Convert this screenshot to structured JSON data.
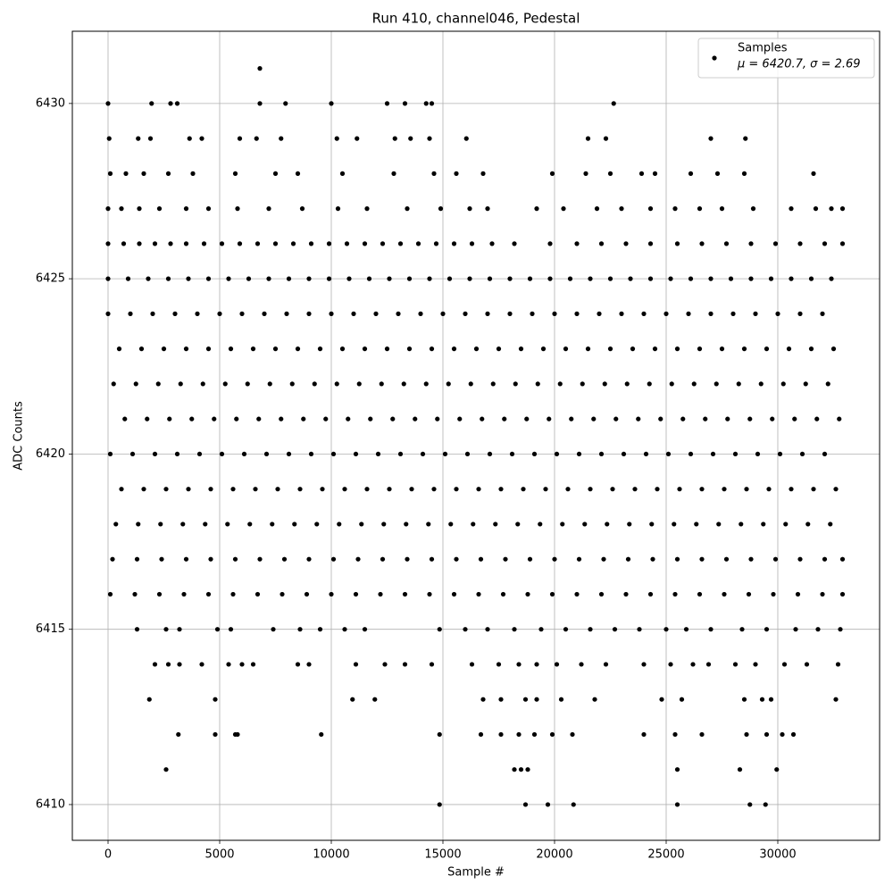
{
  "chart_data": {
    "type": "scatter",
    "title": "Run 410, channel046, Pedestal",
    "x_label": "Sample #",
    "y_label": "ADC Counts",
    "xlim": [
      -1600,
      34560
    ],
    "ylim": [
      6408.98,
      6432.06
    ],
    "xticks": [
      0,
      5000,
      10000,
      15000,
      20000,
      25000,
      30000
    ],
    "yticks": [
      6410,
      6415,
      6420,
      6425,
      6430
    ],
    "grid": true,
    "legend_loc": "upper right",
    "legend_note": "μ = 6420.7, σ = 2.69",
    "series": [
      {
        "name": "Samples",
        "color": "#000000",
        "x": [
          6800,
          0,
          1950,
          2800,
          3100,
          6800,
          7950,
          10000,
          12500,
          13300,
          14250,
          14500,
          22650,
          50,
          1350,
          1900,
          3650,
          4200,
          5900,
          6650,
          7750,
          10250,
          11150,
          12850,
          13550,
          14400,
          16050,
          21500,
          22300,
          27000,
          28550,
          100,
          800,
          1600,
          2700,
          3800,
          5700,
          7500,
          8500,
          10500,
          12800,
          14600,
          15600,
          16800,
          19900,
          21400,
          22500,
          23900,
          24500,
          26100,
          27300,
          28500,
          31600,
          0,
          600,
          1400,
          2300,
          3500,
          4500,
          5800,
          7200,
          8700,
          10300,
          11600,
          13400,
          14900,
          16200,
          17000,
          19200,
          20400,
          21900,
          23000,
          24300,
          25400,
          26500,
          27500,
          28900,
          30600,
          31700,
          32400,
          32900,
          0,
          700,
          1400,
          2100,
          2800,
          3500,
          4300,
          5100,
          5900,
          6700,
          7500,
          8300,
          9100,
          9900,
          10700,
          11500,
          12300,
          13100,
          13900,
          14700,
          15500,
          16300,
          17200,
          18200,
          19800,
          21000,
          22100,
          23200,
          24300,
          25500,
          26600,
          27700,
          28800,
          29900,
          31000,
          32100,
          32900,
          0,
          900,
          1800,
          2700,
          3600,
          4500,
          5400,
          6300,
          7200,
          8100,
          9000,
          9900,
          10800,
          11700,
          12600,
          13500,
          14400,
          15300,
          16200,
          17100,
          18000,
          18900,
          19800,
          20700,
          21600,
          22500,
          23400,
          24300,
          25200,
          26100,
          27000,
          27900,
          28800,
          29700,
          30600,
          31500,
          32400,
          0,
          1000,
          2000,
          3000,
          4000,
          5000,
          6000,
          7000,
          8000,
          9000,
          10000,
          11000,
          12000,
          13000,
          14000,
          15000,
          16000,
          17000,
          18000,
          19000,
          20000,
          21000,
          22000,
          23000,
          24000,
          25000,
          26000,
          27000,
          28000,
          29000,
          30000,
          31000,
          32000,
          500,
          1500,
          2500,
          3500,
          4500,
          5500,
          6500,
          7500,
          8500,
          9500,
          10500,
          11500,
          12500,
          13500,
          14500,
          15500,
          16500,
          17500,
          18500,
          19500,
          20500,
          21500,
          22500,
          23500,
          24500,
          25500,
          26500,
          27500,
          28500,
          29500,
          30500,
          31500,
          32500,
          250,
          1250,
          2250,
          3250,
          4250,
          5250,
          6250,
          7250,
          8250,
          9250,
          10250,
          11250,
          12250,
          13250,
          14250,
          15250,
          16250,
          17250,
          18250,
          19250,
          20250,
          21250,
          22250,
          23250,
          24250,
          25250,
          26250,
          27250,
          28250,
          29250,
          30250,
          31250,
          32250,
          750,
          1750,
          2750,
          3750,
          4750,
          5750,
          6750,
          7750,
          8750,
          9750,
          10750,
          11750,
          12750,
          13750,
          14750,
          15750,
          16750,
          17750,
          18750,
          19750,
          20750,
          21750,
          22750,
          23750,
          24750,
          25750,
          26750,
          27750,
          28750,
          29750,
          30750,
          31750,
          32750,
          100,
          1100,
          2100,
          3100,
          4100,
          5100,
          6100,
          7100,
          8100,
          9100,
          10100,
          11100,
          12100,
          13100,
          14100,
          15100,
          16100,
          17100,
          18100,
          19100,
          20100,
          21100,
          22100,
          23100,
          24100,
          25100,
          26100,
          27100,
          28100,
          29100,
          30100,
          31100,
          32100,
          600,
          1600,
          2600,
          3600,
          4600,
          5600,
          6600,
          7600,
          8600,
          9600,
          10600,
          11600,
          12600,
          13600,
          14600,
          15600,
          16600,
          17600,
          18600,
          19600,
          20600,
          21600,
          22600,
          23600,
          24600,
          25600,
          26600,
          27600,
          28600,
          29600,
          30600,
          31600,
          32600,
          350,
          1350,
          2350,
          3350,
          4350,
          5350,
          6350,
          7350,
          8350,
          9350,
          10350,
          11350,
          12350,
          13350,
          14350,
          15350,
          16350,
          17350,
          18350,
          19350,
          20350,
          21350,
          22350,
          23350,
          24350,
          25350,
          26350,
          27350,
          28350,
          29350,
          30350,
          31350,
          32350,
          200,
          1300,
          2400,
          3500,
          4600,
          5700,
          6800,
          7900,
          9000,
          10100,
          11200,
          12300,
          13400,
          14500,
          15600,
          16700,
          17800,
          18900,
          20000,
          21100,
          22200,
          23300,
          24400,
          25500,
          26600,
          27700,
          28800,
          29900,
          31000,
          32100,
          32900,
          100,
          1200,
          2300,
          3400,
          4500,
          5600,
          6700,
          7800,
          8900,
          10000,
          11100,
          12200,
          13300,
          14400,
          15500,
          16600,
          17700,
          18800,
          19900,
          21000,
          22100,
          23200,
          24300,
          25400,
          26500,
          27600,
          28700,
          29800,
          30900,
          32000,
          32900,
          1300,
          2600,
          3200,
          4900,
          5500,
          7400,
          8600,
          9500,
          10600,
          11500,
          14850,
          16000,
          17000,
          18200,
          19400,
          20500,
          21600,
          22700,
          23800,
          25000,
          25900,
          27000,
          28400,
          29500,
          30800,
          31800,
          32800,
          2100,
          2700,
          3200,
          4200,
          5400,
          6000,
          6500,
          8500,
          9000,
          11100,
          12400,
          13300,
          14500,
          16300,
          17500,
          18400,
          19200,
          20100,
          21200,
          22300,
          24000,
          25200,
          26200,
          26900,
          28100,
          29000,
          30300,
          31300,
          32700,
          1850,
          4800,
          10950,
          11950,
          16800,
          17600,
          18700,
          19200,
          20300,
          21800,
          24800,
          25700,
          28500,
          29300,
          29700,
          32600,
          3150,
          4800,
          5700,
          5800,
          9550,
          14850,
          16700,
          17600,
          18400,
          19100,
          19900,
          20800,
          24000,
          25400,
          26600,
          28600,
          29500,
          30200,
          30700,
          2600,
          18200,
          18500,
          18800,
          25500,
          28300,
          29950,
          14850,
          18700,
          19700,
          20850,
          25500,
          28750,
          29450
        ],
        "values": [
          6431,
          6430,
          6430,
          6430,
          6430,
          6430,
          6430,
          6430,
          6430,
          6430,
          6430,
          6430,
          6430,
          6429,
          6429,
          6429,
          6429,
          6429,
          6429,
          6429,
          6429,
          6429,
          6429,
          6429,
          6429,
          6429,
          6429,
          6429,
          6429,
          6429,
          6429,
          6428,
          6428,
          6428,
          6428,
          6428,
          6428,
          6428,
          6428,
          6428,
          6428,
          6428,
          6428,
          6428,
          6428,
          6428,
          6428,
          6428,
          6428,
          6428,
          6428,
          6428,
          6428,
          6427,
          6427,
          6427,
          6427,
          6427,
          6427,
          6427,
          6427,
          6427,
          6427,
          6427,
          6427,
          6427,
          6427,
          6427,
          6427,
          6427,
          6427,
          6427,
          6427,
          6427,
          6427,
          6427,
          6427,
          6427,
          6427,
          6427,
          6427,
          6426,
          6426,
          6426,
          6426,
          6426,
          6426,
          6426,
          6426,
          6426,
          6426,
          6426,
          6426,
          6426,
          6426,
          6426,
          6426,
          6426,
          6426,
          6426,
          6426,
          6426,
          6426,
          6426,
          6426,
          6426,
          6426,
          6426,
          6426,
          6426,
          6426,
          6426,
          6426,
          6426,
          6426,
          6426,
          6426,
          6426,
          6425,
          6425,
          6425,
          6425,
          6425,
          6425,
          6425,
          6425,
          6425,
          6425,
          6425,
          6425,
          6425,
          6425,
          6425,
          6425,
          6425,
          6425,
          6425,
          6425,
          6425,
          6425,
          6425,
          6425,
          6425,
          6425,
          6425,
          6425,
          6425,
          6425,
          6425,
          6425,
          6425,
          6425,
          6425,
          6425,
          6425,
          6424,
          6424,
          6424,
          6424,
          6424,
          6424,
          6424,
          6424,
          6424,
          6424,
          6424,
          6424,
          6424,
          6424,
          6424,
          6424,
          6424,
          6424,
          6424,
          6424,
          6424,
          6424,
          6424,
          6424,
          6424,
          6424,
          6424,
          6424,
          6424,
          6424,
          6424,
          6424,
          6424,
          6423,
          6423,
          6423,
          6423,
          6423,
          6423,
          6423,
          6423,
          6423,
          6423,
          6423,
          6423,
          6423,
          6423,
          6423,
          6423,
          6423,
          6423,
          6423,
          6423,
          6423,
          6423,
          6423,
          6423,
          6423,
          6423,
          6423,
          6423,
          6423,
          6423,
          6423,
          6423,
          6423,
          6422,
          6422,
          6422,
          6422,
          6422,
          6422,
          6422,
          6422,
          6422,
          6422,
          6422,
          6422,
          6422,
          6422,
          6422,
          6422,
          6422,
          6422,
          6422,
          6422,
          6422,
          6422,
          6422,
          6422,
          6422,
          6422,
          6422,
          6422,
          6422,
          6422,
          6422,
          6422,
          6422,
          6421,
          6421,
          6421,
          6421,
          6421,
          6421,
          6421,
          6421,
          6421,
          6421,
          6421,
          6421,
          6421,
          6421,
          6421,
          6421,
          6421,
          6421,
          6421,
          6421,
          6421,
          6421,
          6421,
          6421,
          6421,
          6421,
          6421,
          6421,
          6421,
          6421,
          6421,
          6421,
          6421,
          6420,
          6420,
          6420,
          6420,
          6420,
          6420,
          6420,
          6420,
          6420,
          6420,
          6420,
          6420,
          6420,
          6420,
          6420,
          6420,
          6420,
          6420,
          6420,
          6420,
          6420,
          6420,
          6420,
          6420,
          6420,
          6420,
          6420,
          6420,
          6420,
          6420,
          6420,
          6420,
          6420,
          6419,
          6419,
          6419,
          6419,
          6419,
          6419,
          6419,
          6419,
          6419,
          6419,
          6419,
          6419,
          6419,
          6419,
          6419,
          6419,
          6419,
          6419,
          6419,
          6419,
          6419,
          6419,
          6419,
          6419,
          6419,
          6419,
          6419,
          6419,
          6419,
          6419,
          6419,
          6419,
          6419,
          6418,
          6418,
          6418,
          6418,
          6418,
          6418,
          6418,
          6418,
          6418,
          6418,
          6418,
          6418,
          6418,
          6418,
          6418,
          6418,
          6418,
          6418,
          6418,
          6418,
          6418,
          6418,
          6418,
          6418,
          6418,
          6418,
          6418,
          6418,
          6418,
          6418,
          6418,
          6418,
          6418,
          6417,
          6417,
          6417,
          6417,
          6417,
          6417,
          6417,
          6417,
          6417,
          6417,
          6417,
          6417,
          6417,
          6417,
          6417,
          6417,
          6417,
          6417,
          6417,
          6417,
          6417,
          6417,
          6417,
          6417,
          6417,
          6417,
          6417,
          6417,
          6417,
          6417,
          6417,
          6416,
          6416,
          6416,
          6416,
          6416,
          6416,
          6416,
          6416,
          6416,
          6416,
          6416,
          6416,
          6416,
          6416,
          6416,
          6416,
          6416,
          6416,
          6416,
          6416,
          6416,
          6416,
          6416,
          6416,
          6416,
          6416,
          6416,
          6416,
          6416,
          6416,
          6416,
          6415,
          6415,
          6415,
          6415,
          6415,
          6415,
          6415,
          6415,
          6415,
          6415,
          6415,
          6415,
          6415,
          6415,
          6415,
          6415,
          6415,
          6415,
          6415,
          6415,
          6415,
          6415,
          6415,
          6415,
          6415,
          6415,
          6415,
          6414,
          6414,
          6414,
          6414,
          6414,
          6414,
          6414,
          6414,
          6414,
          6414,
          6414,
          6414,
          6414,
          6414,
          6414,
          6414,
          6414,
          6414,
          6414,
          6414,
          6414,
          6414,
          6414,
          6414,
          6414,
          6414,
          6414,
          6414,
          6414,
          6413,
          6413,
          6413,
          6413,
          6413,
          6413,
          6413,
          6413,
          6413,
          6413,
          6413,
          6413,
          6413,
          6413,
          6413,
          6413,
          6412,
          6412,
          6412,
          6412,
          6412,
          6412,
          6412,
          6412,
          6412,
          6412,
          6412,
          6412,
          6412,
          6412,
          6412,
          6412,
          6412,
          6412,
          6412,
          6411,
          6411,
          6411,
          6411,
          6411,
          6411,
          6411,
          6410,
          6410,
          6410,
          6410,
          6410,
          6410,
          6410
        ]
      }
    ]
  }
}
